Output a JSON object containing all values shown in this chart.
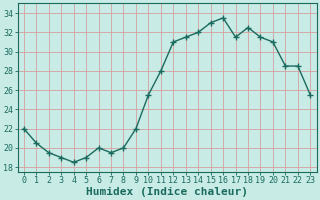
{
  "x": [
    0,
    1,
    2,
    3,
    4,
    5,
    6,
    7,
    8,
    9,
    10,
    11,
    12,
    13,
    14,
    15,
    16,
    17,
    18,
    19,
    20,
    21,
    22,
    23
  ],
  "y": [
    22,
    20.5,
    19.5,
    19,
    18.5,
    19,
    20,
    19.5,
    20,
    22,
    25.5,
    28,
    31,
    31.5,
    32,
    33,
    33.5,
    31.5,
    32.5,
    31.5,
    31,
    28.5,
    28.5,
    25.5
  ],
  "line_color": "#1a6b5e",
  "marker": "+",
  "marker_size": 4,
  "bg_color": "#c8ebe5",
  "grid_color": "#d4a0a0",
  "xlabel": "Humidex (Indice chaleur)",
  "xlim": [
    -0.5,
    23.5
  ],
  "ylim": [
    17.5,
    35
  ],
  "yticks": [
    18,
    20,
    22,
    24,
    26,
    28,
    30,
    32,
    34
  ],
  "xticks": [
    0,
    1,
    2,
    3,
    4,
    5,
    6,
    7,
    8,
    9,
    10,
    11,
    12,
    13,
    14,
    15,
    16,
    17,
    18,
    19,
    20,
    21,
    22,
    23
  ],
  "xlabel_fontsize": 8,
  "tick_fontsize": 6,
  "line_width": 1.0
}
